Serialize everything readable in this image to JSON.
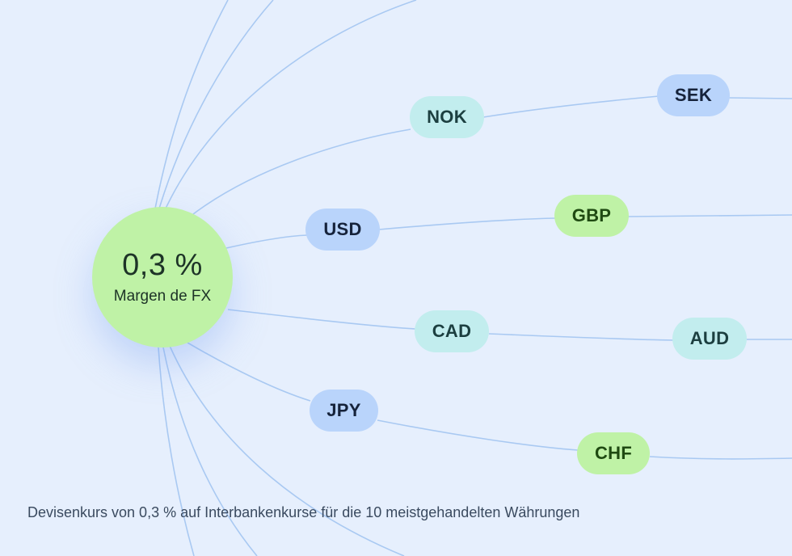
{
  "hub": {
    "value": "0,3 %",
    "label": "Margen de FX"
  },
  "currencies": {
    "nok": {
      "label": "NOK",
      "color": "teal"
    },
    "sek": {
      "label": "SEK",
      "color": "blue"
    },
    "usd": {
      "label": "USD",
      "color": "blue"
    },
    "gbp": {
      "label": "GBP",
      "color": "green"
    },
    "cad": {
      "label": "CAD",
      "color": "teal"
    },
    "aud": {
      "label": "AUD",
      "color": "teal"
    },
    "jpy": {
      "label": "JPY",
      "color": "blue"
    },
    "chf": {
      "label": "CHF",
      "color": "green"
    }
  },
  "caption": "Devisenkurs von 0,3 % auf Interbankenkurse für die 10 meistgehandelten Währungen",
  "colors": {
    "background": "#e6effd",
    "hub": "#bff2a6",
    "line": "#a9c9f2",
    "pill_blue": "#b9d4fb",
    "pill_teal": "#c2edee",
    "pill_green": "#bff2a6"
  }
}
